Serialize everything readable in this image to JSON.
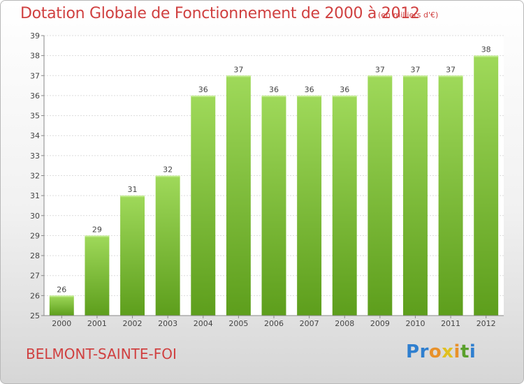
{
  "header": {
    "title": "Dotation Globale de Fonctionnement de 2000 à 2012",
    "subtitle": "(en milliers d'€)"
  },
  "footer": {
    "place": "BELMONT-SAINTE-FOI",
    "brand_letters": [
      "P",
      "r",
      "o",
      "x",
      "i",
      "t",
      "i"
    ],
    "brand_colors": [
      "#2f7fcf",
      "#2f7fcf",
      "#e8912a",
      "#e0c020",
      "#e8912a",
      "#5aa02c",
      "#2f7fcf"
    ]
  },
  "chart_data": {
    "type": "bar",
    "categories": [
      "2000",
      "2001",
      "2002",
      "2003",
      "2004",
      "2005",
      "2006",
      "2007",
      "2008",
      "2009",
      "2010",
      "2011",
      "2012"
    ],
    "values": [
      26,
      29,
      31,
      32,
      36,
      37,
      36,
      36,
      36,
      37,
      37,
      37,
      38
    ],
    "data_labels": [
      "26",
      "29",
      "31",
      "32",
      "36",
      "37",
      "36",
      "36",
      "36",
      "37",
      "37",
      "37",
      "38"
    ],
    "title": "Dotation Globale de Fonctionnement de 2000 à 2012",
    "subtitle": "(en milliers d'€)",
    "xlabel": "",
    "ylabel": "",
    "ylim": [
      25,
      39
    ],
    "yticks": [
      "25",
      "26",
      "27",
      "28",
      "29",
      "30",
      "31",
      "32",
      "33",
      "34",
      "35",
      "36",
      "37",
      "38",
      "39"
    ],
    "grid": true,
    "bar_color": "#7cc63a"
  }
}
